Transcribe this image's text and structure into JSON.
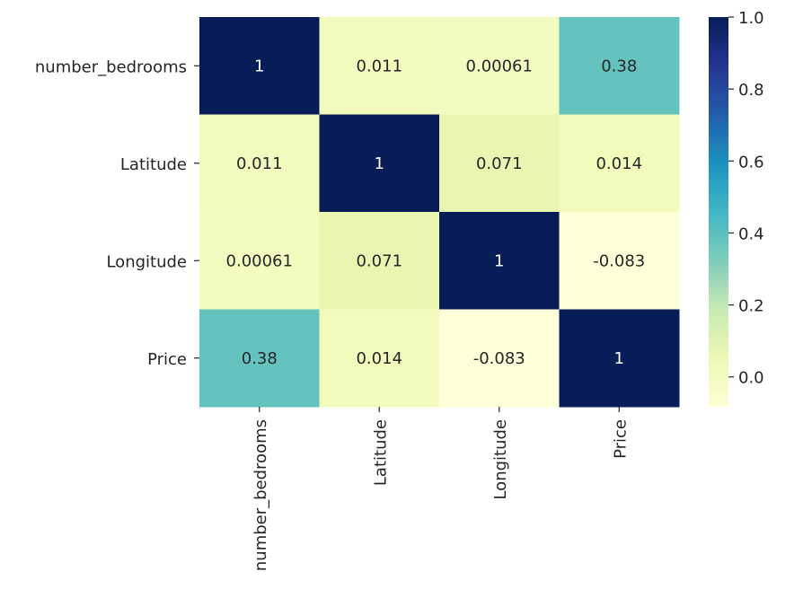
{
  "chart_data": {
    "type": "heatmap",
    "rows": [
      "number_bedrooms",
      "Latitude",
      "Longitude",
      "Price"
    ],
    "columns": [
      "number_bedrooms",
      "Latitude",
      "Longitude",
      "Price"
    ],
    "values": [
      [
        1,
        0.011,
        0.00061,
        0.38
      ],
      [
        0.011,
        1,
        0.071,
        0.014
      ],
      [
        0.00061,
        0.071,
        1,
        -0.083
      ],
      [
        0.38,
        0.014,
        -0.083,
        1
      ]
    ],
    "annotations": [
      [
        "1",
        "0.011",
        "0.00061",
        "0.38"
      ],
      [
        "0.011",
        "1",
        "0.071",
        "0.014"
      ],
      [
        "0.00061",
        "0.071",
        "1",
        "-0.083"
      ],
      [
        "0.38",
        "0.014",
        "-0.083",
        "1"
      ]
    ],
    "colormap": "YlGnBu",
    "vmin": -0.083,
    "vmax": 1,
    "colorbar": {
      "ticks": [
        0.0,
        0.2,
        0.4,
        0.6,
        0.8,
        1.0
      ],
      "tick_labels": [
        "0.0",
        "0.2",
        "0.4",
        "0.6",
        "0.8",
        "1.0"
      ]
    },
    "title": "",
    "xlabel": "",
    "ylabel": ""
  }
}
